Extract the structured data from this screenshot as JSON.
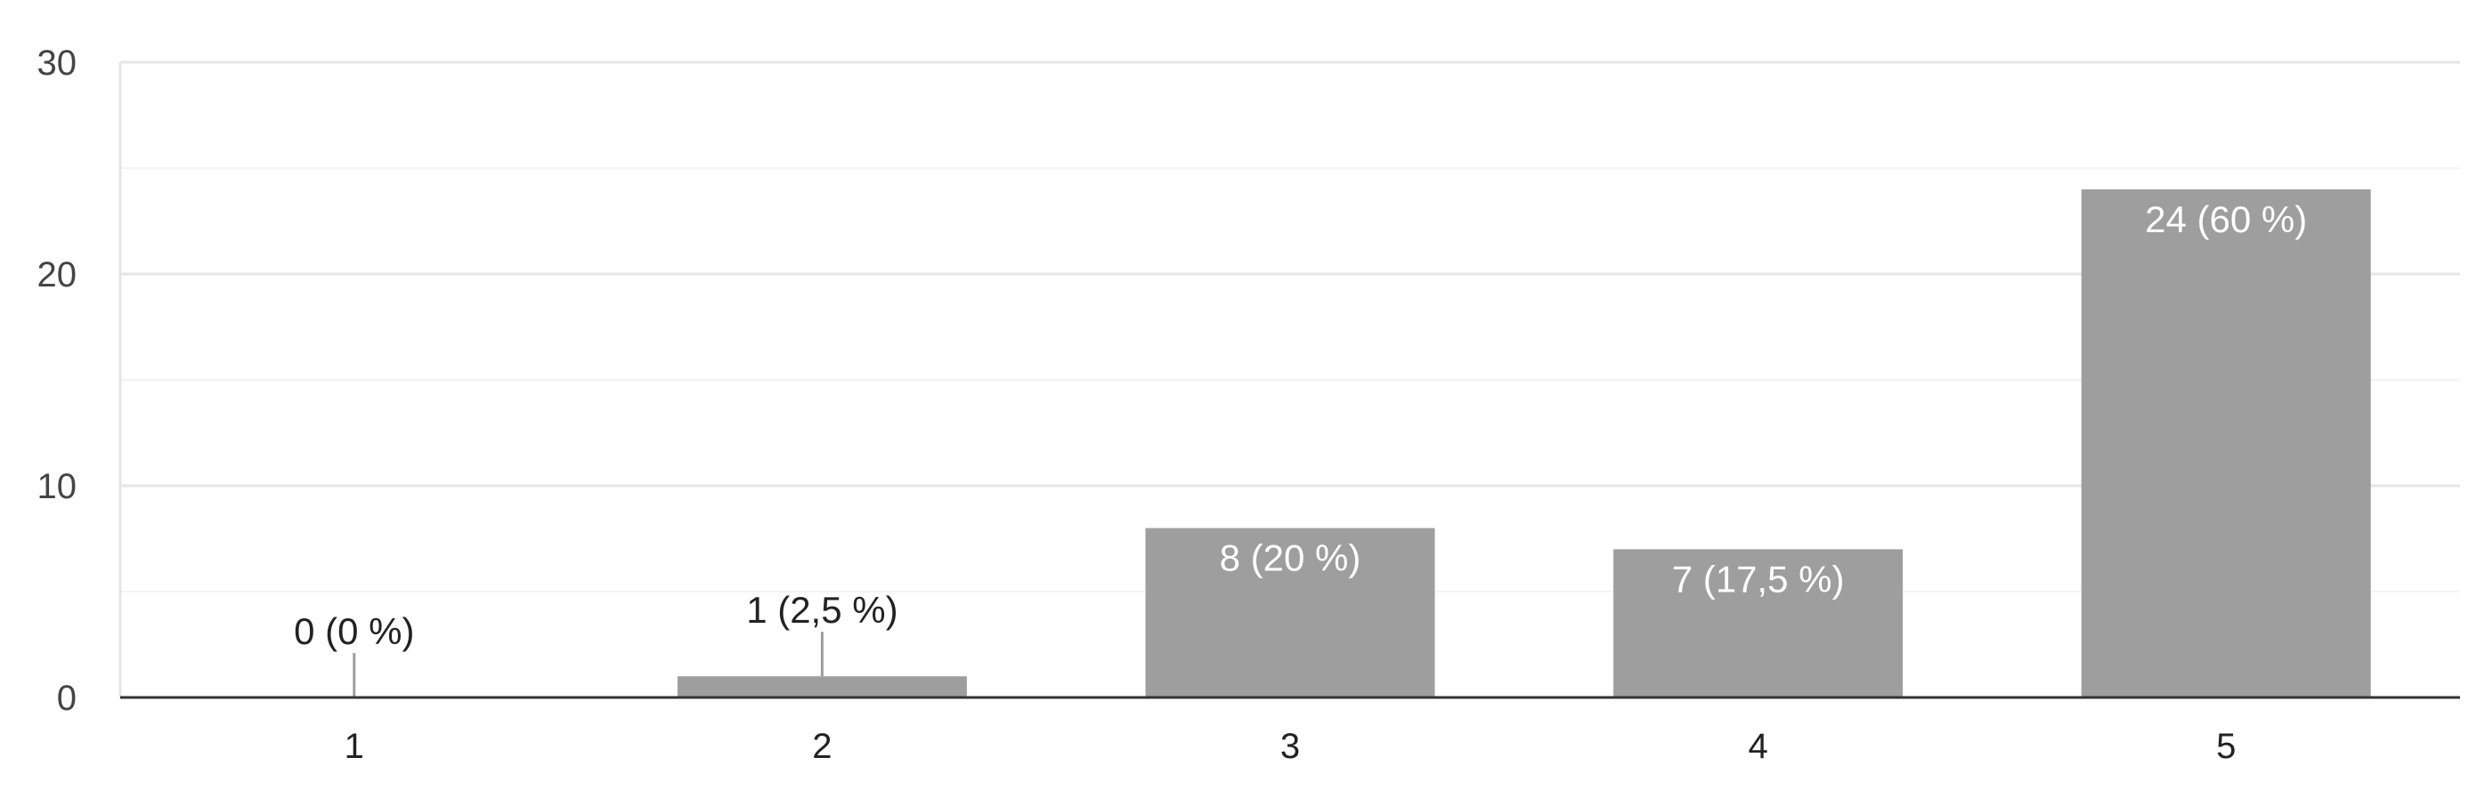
{
  "chart_data": {
    "type": "bar",
    "title": "",
    "xlabel": "",
    "ylabel": "",
    "categories": [
      "1",
      "2",
      "3",
      "4",
      "5"
    ],
    "values": [
      0,
      1,
      8,
      7,
      24
    ],
    "data_labels": [
      "0 (0 %)",
      "1 (2,5 %)",
      "8 (20 %)",
      "7 (17,5 %)",
      "24 (60 %)"
    ],
    "ylim": [
      0,
      30
    ],
    "yticks": [
      0,
      10,
      20,
      30
    ],
    "grid": true,
    "legend": "none",
    "colors": {
      "bar": "#9e9e9e",
      "label_inside": "#ffffff",
      "label_outside": "#222222",
      "leader_line": "#9e9e9e",
      "gridline_major": "#e6e6e6",
      "gridline_minor": "#f3f3f3",
      "baseline": "#333333"
    }
  }
}
